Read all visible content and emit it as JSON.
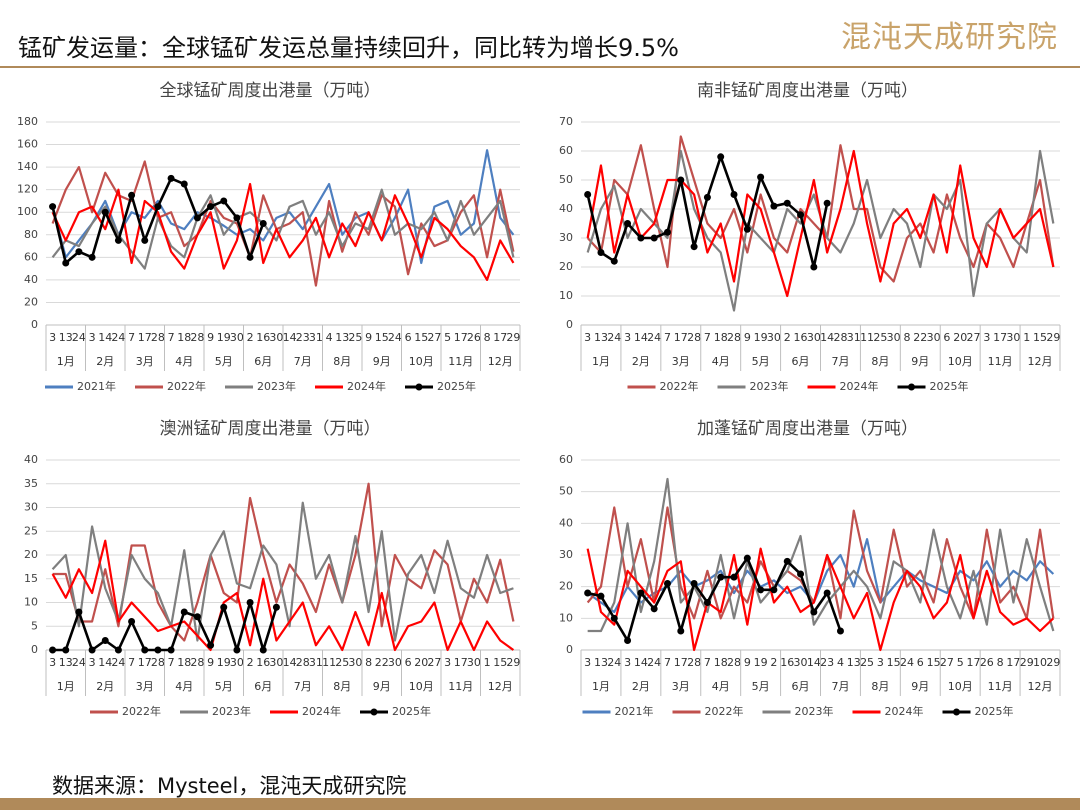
{
  "header": {
    "title": "锰矿发运量：全球锰矿发运总量持续回升，同比转为增长9.5%",
    "logo": "混沌天成研究院"
  },
  "source": "数据来源：Mysteel，混沌天成研究院",
  "chart_data": [
    {
      "type": "line",
      "title": "全球锰矿周度出港量（万吨）",
      "categories": [
        "3",
        "13",
        "24",
        "3",
        "14",
        "24",
        "7",
        "17",
        "28",
        "7",
        "18",
        "28",
        "9",
        "19",
        "30",
        "2",
        "16",
        "30",
        "14",
        "23",
        "31",
        "4",
        "13",
        "25",
        "9",
        "15",
        "24",
        "6",
        "15",
        "27",
        "5",
        "17",
        "26",
        "8",
        "17",
        "29"
      ],
      "months": [
        "1月",
        "2月",
        "3月",
        "4月",
        "5月",
        "6月",
        "7月",
        "8月",
        "9月",
        "10月",
        "11月",
        "12月"
      ],
      "ylim": [
        0,
        180
      ],
      "yticks": [
        0,
        20,
        40,
        60,
        80,
        100,
        120,
        140,
        160,
        180
      ],
      "grid": true,
      "series": [
        {
          "name": "2021年",
          "color": "#4e7fc0",
          "values": [
            105,
            60,
            75,
            90,
            110,
            80,
            100,
            95,
            110,
            90,
            85,
            100,
            95,
            88,
            80,
            85,
            75,
            95,
            100,
            85,
            105,
            125,
            80,
            95,
            100,
            75,
            95,
            120,
            55,
            105,
            110,
            80,
            90,
            155,
            95,
            80
          ]
        },
        {
          "name": "2022年",
          "color": "#c0504d",
          "values": [
            90,
            120,
            140,
            100,
            135,
            115,
            110,
            145,
            95,
            100,
            70,
            80,
            110,
            95,
            90,
            60,
            115,
            85,
            90,
            100,
            35,
            110,
            65,
            100,
            80,
            115,
            105,
            45,
            90,
            70,
            75,
            100,
            115,
            60,
            120,
            65
          ]
        },
        {
          "name": "2023年",
          "color": "#7f7f7f",
          "values": [
            60,
            75,
            70,
            90,
            105,
            80,
            65,
            50,
            95,
            70,
            60,
            95,
            115,
            80,
            95,
            100,
            90,
            75,
            105,
            110,
            80,
            100,
            70,
            90,
            85,
            120,
            80,
            90,
            85,
            100,
            75,
            110,
            80,
            95,
            110,
            60
          ]
        },
        {
          "name": "2024年",
          "color": "#ff0000",
          "values": [
            100,
            75,
            100,
            105,
            85,
            120,
            55,
            110,
            100,
            65,
            50,
            80,
            100,
            50,
            75,
            125,
            55,
            85,
            60,
            75,
            95,
            60,
            90,
            70,
            100,
            75,
            115,
            90,
            60,
            95,
            85,
            70,
            60,
            40,
            75,
            55
          ]
        },
        {
          "name": "2025年",
          "color": "#000000",
          "markers": true,
          "values": [
            105,
            55,
            65,
            60,
            100,
            75,
            115,
            75,
            105,
            130,
            125,
            95,
            105,
            110,
            95,
            60,
            90,
            null,
            null,
            null,
            null,
            null,
            null,
            null,
            null,
            null,
            null,
            null,
            null,
            null,
            null,
            null,
            null,
            null,
            null,
            null
          ]
        }
      ]
    },
    {
      "type": "line",
      "title": "南非锰矿周度出港量（万吨）",
      "categories": [
        "3",
        "13",
        "24",
        "3",
        "14",
        "24",
        "7",
        "17",
        "28",
        "7",
        "18",
        "28",
        "9",
        "19",
        "30",
        "2",
        "16",
        "30",
        "14",
        "28",
        "31",
        "11",
        "25",
        "30",
        "8",
        "22",
        "30",
        "6",
        "20",
        "27",
        "3",
        "17",
        "30",
        "1",
        "15",
        "29"
      ],
      "months": [
        "1月",
        "2月",
        "3月",
        "4月",
        "5月",
        "6月",
        "7月",
        "8月",
        "9月",
        "10月",
        "11月",
        "12月"
      ],
      "ylim": [
        0,
        70
      ],
      "yticks": [
        0,
        10,
        20,
        30,
        40,
        50,
        60,
        70
      ],
      "grid": true,
      "series": [
        {
          "name": "2022年",
          "color": "#c0504d",
          "values": [
            30,
            25,
            50,
            45,
            62,
            40,
            20,
            65,
            50,
            35,
            30,
            40,
            25,
            45,
            30,
            25,
            40,
            35,
            30,
            62,
            40,
            40,
            20,
            15,
            30,
            35,
            25,
            45,
            30,
            20,
            35,
            30,
            20,
            35,
            50,
            20
          ]
        },
        {
          "name": "2023年",
          "color": "#7f7f7f",
          "values": [
            25,
            40,
            48,
            30,
            40,
            35,
            30,
            60,
            40,
            30,
            25,
            5,
            35,
            30,
            25,
            40,
            35,
            45,
            30,
            25,
            35,
            50,
            30,
            40,
            35,
            20,
            45,
            40,
            50,
            10,
            35,
            40,
            30,
            25,
            60,
            35
          ]
        },
        {
          "name": "2024年",
          "color": "#ff0000",
          "values": [
            30,
            55,
            25,
            45,
            30,
            35,
            50,
            50,
            45,
            25,
            35,
            15,
            45,
            40,
            25,
            10,
            30,
            50,
            25,
            40,
            60,
            35,
            15,
            35,
            40,
            30,
            45,
            25,
            55,
            30,
            20,
            40,
            30,
            35,
            40,
            20
          ]
        },
        {
          "name": "2025年",
          "color": "#000000",
          "markers": true,
          "values": [
            45,
            25,
            22,
            35,
            30,
            30,
            32,
            50,
            27,
            44,
            58,
            45,
            33,
            51,
            41,
            42,
            38,
            20,
            42,
            null,
            null,
            null,
            null,
            null,
            null,
            null,
            null,
            null,
            null,
            null,
            null,
            null,
            null,
            null,
            null,
            null
          ]
        }
      ]
    },
    {
      "type": "line",
      "title": "澳洲锰矿周度出港量（万吨）",
      "categories": [
        "3",
        "13",
        "24",
        "3",
        "14",
        "24",
        "7",
        "17",
        "28",
        "7",
        "18",
        "28",
        "9",
        "19",
        "30",
        "2",
        "16",
        "30",
        "14",
        "28",
        "31",
        "11",
        "25",
        "30",
        "8",
        "22",
        "30",
        "6",
        "20",
        "27",
        "3",
        "17",
        "30",
        "1",
        "15",
        "29"
      ],
      "months": [
        "1月",
        "2月",
        "3月",
        "4月",
        "5月",
        "6月",
        "7月",
        "8月",
        "9月",
        "10月",
        "11月",
        "12月"
      ],
      "ylim": [
        0,
        40
      ],
      "yticks": [
        0,
        5,
        10,
        15,
        20,
        25,
        30,
        35,
        40
      ],
      "grid": true,
      "series": [
        {
          "name": "2022年",
          "color": "#c0504d",
          "values": [
            16,
            16,
            6,
            6,
            17,
            5,
            22,
            22,
            10,
            5,
            2,
            10,
            20,
            12,
            10,
            32,
            20,
            10,
            18,
            14,
            8,
            18,
            10,
            20,
            35,
            5,
            20,
            15,
            13,
            21,
            18,
            6,
            15,
            10,
            19,
            6
          ]
        },
        {
          "name": "2023年",
          "color": "#7f7f7f",
          "values": [
            17,
            20,
            5,
            26,
            13,
            6,
            20,
            15,
            12,
            5,
            21,
            2,
            20,
            25,
            14,
            13,
            22,
            18,
            5,
            31,
            15,
            20,
            10,
            24,
            8,
            25,
            2,
            16,
            20,
            12,
            23,
            13,
            11,
            20,
            12,
            13
          ]
        },
        {
          "name": "2024年",
          "color": "#ff0000",
          "values": [
            16,
            11,
            17,
            12,
            23,
            6,
            10,
            7,
            4,
            5,
            6,
            3,
            0,
            10,
            12,
            1,
            15,
            2,
            6,
            10,
            1,
            5,
            0,
            8,
            1,
            12,
            0,
            5,
            6,
            10,
            0,
            6,
            0,
            6,
            2,
            0
          ]
        },
        {
          "name": "2025年",
          "color": "#000000",
          "markers": true,
          "values": [
            0,
            0,
            8,
            0,
            2,
            0,
            6,
            0,
            0,
            0,
            8,
            7,
            1,
            9,
            0,
            10,
            0,
            9,
            null,
            null,
            null,
            null,
            null,
            null,
            null,
            null,
            null,
            null,
            null,
            null,
            null,
            null,
            null,
            null,
            null,
            null
          ]
        }
      ]
    },
    {
      "type": "line",
      "title": "加蓬锰矿周度出港量（万吨）",
      "categories": [
        "3",
        "13",
        "24",
        "3",
        "14",
        "24",
        "7",
        "17",
        "28",
        "7",
        "18",
        "28",
        "9",
        "19",
        "2",
        "16",
        "30",
        "14",
        "23",
        "4",
        "13",
        "25",
        "3",
        "15",
        "24",
        "6",
        "15",
        "27",
        "5",
        "17",
        "26",
        "8",
        "17",
        "29",
        "10",
        "29"
      ],
      "months": [
        "1月",
        "2月",
        "3月",
        "4月",
        "5月",
        "6月",
        "7月",
        "8月",
        "9月",
        "10月",
        "11月",
        "12月"
      ],
      "ylim": [
        0,
        60
      ],
      "yticks": [
        0,
        10,
        20,
        30,
        40,
        50,
        60
      ],
      "grid": true,
      "series": [
        {
          "name": "2021年",
          "color": "#4e7fc0",
          "values": [
            18,
            15,
            12,
            20,
            15,
            18,
            20,
            25,
            20,
            22,
            25,
            18,
            25,
            20,
            22,
            18,
            20,
            15,
            25,
            30,
            20,
            35,
            15,
            20,
            25,
            22,
            20,
            18,
            25,
            22,
            28,
            20,
            25,
            22,
            28,
            24
          ]
        },
        {
          "name": "2022年",
          "color": "#c0504d",
          "values": [
            15,
            20,
            45,
            20,
            35,
            15,
            45,
            20,
            10,
            25,
            10,
            20,
            15,
            28,
            20,
            25,
            22,
            15,
            30,
            10,
            44,
            25,
            15,
            38,
            20,
            25,
            15,
            35,
            20,
            10,
            38,
            15,
            20,
            10,
            38,
            10
          ]
        },
        {
          "name": "2023年",
          "color": "#7f7f7f",
          "values": [
            6,
            6,
            15,
            40,
            12,
            28,
            54,
            15,
            20,
            12,
            30,
            10,
            28,
            15,
            20,
            25,
            36,
            8,
            15,
            20,
            25,
            20,
            10,
            28,
            25,
            15,
            38,
            20,
            10,
            25,
            8,
            38,
            15,
            35,
            20,
            6
          ]
        },
        {
          "name": "2024年",
          "color": "#ff0000",
          "values": [
            32,
            12,
            8,
            25,
            20,
            15,
            25,
            28,
            0,
            15,
            12,
            30,
            8,
            32,
            15,
            20,
            12,
            15,
            30,
            20,
            10,
            18,
            0,
            15,
            25,
            20,
            10,
            15,
            30,
            10,
            25,
            12,
            8,
            10,
            6,
            10
          ]
        },
        {
          "name": "2025年",
          "color": "#000000",
          "markers": true,
          "values": [
            18,
            17,
            10,
            3,
            18,
            13,
            21,
            6,
            21,
            15,
            23,
            23,
            29,
            19,
            19,
            28,
            24,
            12,
            18,
            6,
            null,
            null,
            null,
            null,
            null,
            null,
            null,
            null,
            null,
            null,
            null,
            null,
            null,
            null,
            null,
            null
          ]
        }
      ]
    }
  ]
}
